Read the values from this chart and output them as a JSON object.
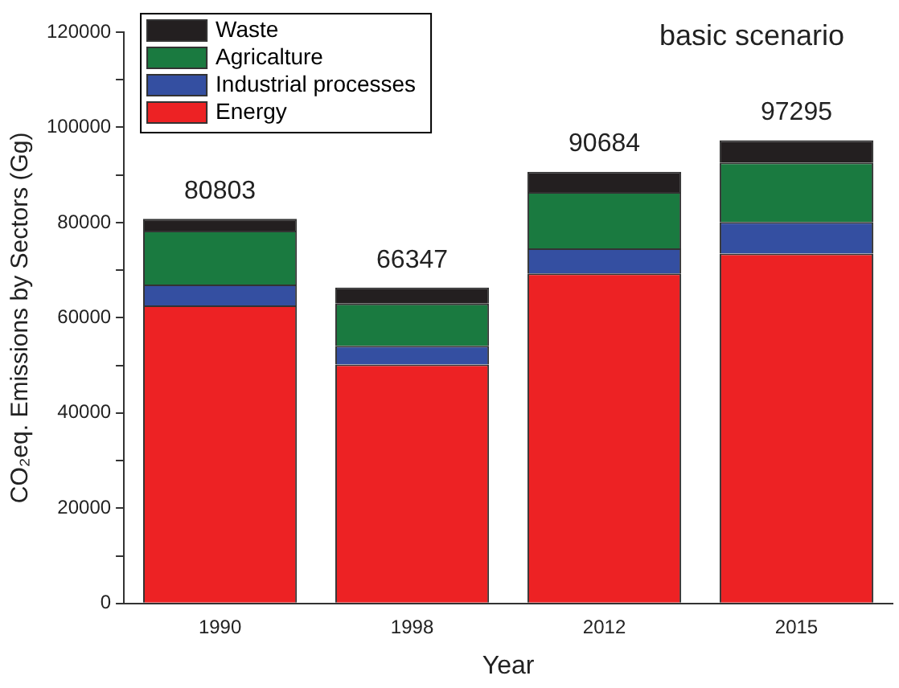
{
  "chart_data": {
    "type": "bar",
    "stacked": true,
    "xlabel": "Year",
    "ylabel": "CO₂eq. Emissions by Sectors (Gg)",
    "categories": [
      "1990",
      "1998",
      "2012",
      "2015"
    ],
    "series": [
      {
        "name": "Energy",
        "color": "#ed2224",
        "values": [
          62600,
          50200,
          69300,
          73500
        ]
      },
      {
        "name": "Industrial processes",
        "color": "#344fa1",
        "values": [
          4400,
          3900,
          5300,
          6600
        ]
      },
      {
        "name": "Agricalture",
        "color": "#1a7a40",
        "values": [
          11300,
          8900,
          11800,
          12500
        ]
      },
      {
        "name": "Waste",
        "color": "#231f20",
        "values": [
          2503,
          3347,
          4284,
          4695
        ]
      }
    ],
    "totals": [
      "80803",
      "66347",
      "90684",
      "97295"
    ],
    "ylim": [
      0,
      120000
    ],
    "yticks": [
      0,
      {
        "value": 10000,
        "label": null
      },
      20000,
      {
        "value": 30000,
        "label": null
      },
      40000,
      {
        "value": 50000,
        "label": null
      },
      60000,
      {
        "value": 70000,
        "label": null
      },
      80000,
      {
        "value": 90000,
        "label": null
      },
      100000,
      {
        "value": 110000,
        "label": null
      },
      120000
    ],
    "annotations": [
      "basic scenario"
    ],
    "legend": "top left",
    "grid": false
  }
}
